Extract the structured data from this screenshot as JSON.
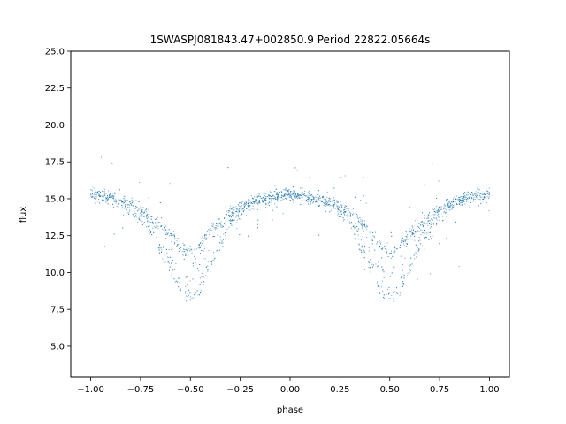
{
  "chart_data": {
    "type": "scatter",
    "title": "1SWASPJ081843.47+002850.9 Period 22822.05664s",
    "xlabel": "phase",
    "ylabel": "flux",
    "xlim": [
      -1.1,
      1.1
    ],
    "ylim": [
      2.9,
      25.0
    ],
    "x_ticks": [
      -1.0,
      -0.75,
      -0.5,
      -0.25,
      0.0,
      0.25,
      0.5,
      0.75,
      1.0
    ],
    "x_tick_labels": [
      "−1.00",
      "−0.75",
      "−0.50",
      "−0.25",
      "0.00",
      "0.25",
      "0.50",
      "0.75",
      "1.00"
    ],
    "y_ticks": [
      5.0,
      7.5,
      10.0,
      12.5,
      15.0,
      17.5,
      20.0,
      22.5,
      25.0
    ],
    "y_tick_labels": [
      "5.0",
      "7.5",
      "10.0",
      "12.5",
      "15.0",
      "17.5",
      "20.0",
      "22.5",
      "25.0"
    ],
    "grid": false,
    "legend": "none",
    "marker_color": "#1f77b4",
    "series": [
      {
        "phase": [
          -1.0,
          -0.9,
          -0.8,
          -0.7,
          -0.6,
          -0.55,
          -0.5,
          -0.45,
          -0.4,
          -0.3,
          -0.2,
          -0.1,
          0.0,
          0.1,
          0.2,
          0.3,
          0.4,
          0.45,
          0.5,
          0.55,
          0.6,
          0.7,
          0.8,
          0.9,
          1.0
        ],
        "flux_upper_branch": [
          15.3,
          15.1,
          14.7,
          13.8,
          12.6,
          11.8,
          11.4,
          11.9,
          12.9,
          14.1,
          14.8,
          15.1,
          15.3,
          15.1,
          14.8,
          14.1,
          12.9,
          11.9,
          11.4,
          11.8,
          12.6,
          13.8,
          14.7,
          15.1,
          15.3
        ],
        "flux_lower_branch": [
          15.3,
          15.1,
          14.4,
          12.8,
          10.2,
          8.8,
          8.2,
          8.8,
          10.5,
          13.3,
          14.6,
          15.0,
          15.3,
          15.0,
          14.6,
          13.3,
          10.5,
          8.8,
          8.2,
          8.8,
          10.2,
          12.8,
          14.4,
          15.1,
          15.3
        ]
      }
    ]
  }
}
